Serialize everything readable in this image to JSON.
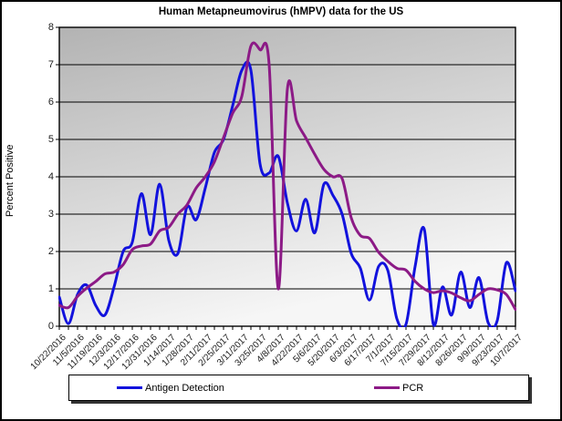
{
  "title": "Human Metapneumovirus (hMPV) data for the US",
  "y_axis_title": "Percent Positive",
  "legend": {
    "antigen_label": "Antigen Detection",
    "pcr_label": "PCR"
  },
  "colors": {
    "antigen_line": "#1212dd",
    "pcr_line": "#8c1a86",
    "gridline": "#000000",
    "plot_border": "#000000",
    "plot_bg_top": "#b3b3b3",
    "plot_bg_bottom": "#f6f6f6",
    "tick_label": "#1a1a1a"
  },
  "chart_data": {
    "type": "line",
    "title": "Human Metapneumovirus (hMPV) data for the US",
    "xlabel": "",
    "ylabel": "Percent Positive",
    "ylim": [
      0,
      8
    ],
    "y_ticks": [
      0,
      1,
      2,
      3,
      4,
      5,
      6,
      7,
      8
    ],
    "grid": true,
    "legend_position": "bottom",
    "smoothed_lines": true,
    "points_per_label": 2,
    "x_tick_labels": [
      "10/22/2016",
      "11/5/2016",
      "11/19/2016",
      "12/3/2016",
      "12/17/2016",
      "12/31/2016",
      "1/14/2017",
      "1/28/2017",
      "2/11/2017",
      "2/25/2017",
      "3/11/2017",
      "3/25/2017",
      "4/8/2017",
      "4/22/2017",
      "5/6/2017",
      "5/20/2017",
      "6/3/2017",
      "6/17/2017",
      "7/1/2017",
      "7/15/2017",
      "7/29/2017",
      "8/12/2017",
      "8/26/2017",
      "9/9/2017",
      "9/23/2017",
      "10/7/2017"
    ],
    "series": [
      {
        "name": "Antigen Detection",
        "color": "#1212dd",
        "values": [
          0.78,
          0.07,
          0.85,
          1.1,
          0.55,
          0.3,
          1.05,
          2.0,
          2.25,
          3.55,
          2.45,
          3.8,
          2.3,
          1.95,
          3.2,
          2.85,
          3.7,
          4.65,
          5.0,
          5.9,
          6.85,
          6.85,
          4.35,
          4.1,
          4.55,
          3.3,
          2.55,
          3.4,
          2.5,
          3.8,
          3.5,
          3.0,
          1.95,
          1.55,
          0.7,
          1.6,
          1.5,
          0.2,
          0.05,
          1.6,
          2.6,
          0.05,
          1.05,
          0.3,
          1.45,
          0.5,
          1.3,
          0.1,
          0.15,
          1.7,
          0.95
        ]
      },
      {
        "name": "PCR",
        "color": "#8c1a86",
        "values": [
          0.56,
          0.5,
          0.8,
          1.02,
          1.2,
          1.4,
          1.45,
          1.65,
          2.05,
          2.15,
          2.2,
          2.55,
          2.65,
          3.0,
          3.25,
          3.7,
          4.0,
          4.4,
          5.05,
          5.7,
          6.15,
          7.5,
          7.4,
          7.0,
          1.0,
          6.35,
          5.5,
          5.05,
          4.6,
          4.2,
          4.0,
          3.95,
          2.9,
          2.43,
          2.35,
          1.98,
          1.74,
          1.55,
          1.5,
          1.2,
          1.0,
          0.9,
          0.95,
          0.89,
          0.76,
          0.68,
          0.85,
          1.0,
          0.97,
          0.85,
          0.45
        ]
      }
    ]
  }
}
